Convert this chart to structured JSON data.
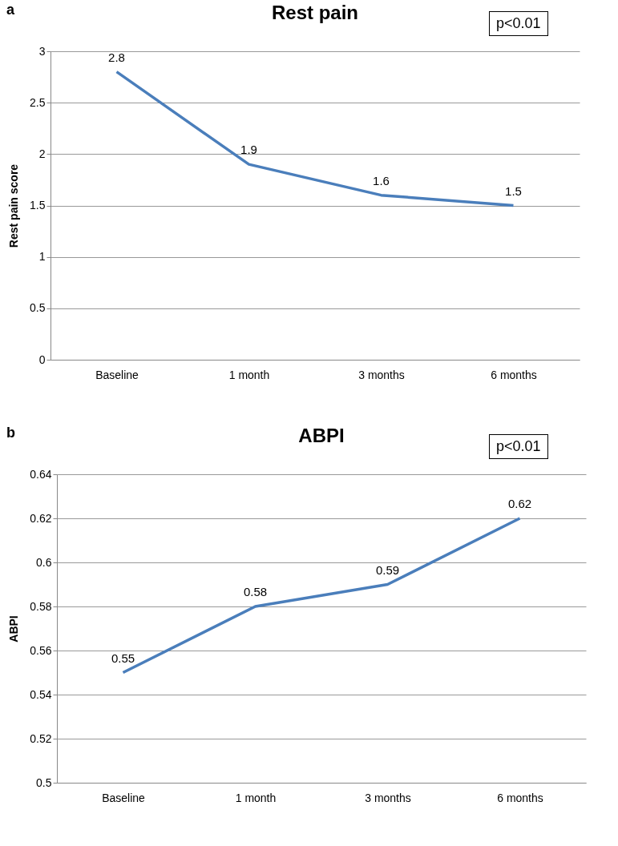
{
  "chart_data": [
    {
      "type": "line",
      "title": "Rest pain",
      "ylabel": "Rest pain score",
      "annotations": [
        "a",
        "p<0.01"
      ],
      "categories": [
        "Baseline",
        "1 month",
        "3 months",
        "6 months"
      ],
      "series": [
        {
          "color": "#4a7ebb",
          "values": [
            2.8,
            1.9,
            1.6,
            1.5
          ]
        }
      ],
      "ylim": [
        0,
        3
      ],
      "yticks": [
        0,
        0.5,
        1,
        1.5,
        2,
        2.5,
        3
      ],
      "grid": "y",
      "data_labels": true
    },
    {
      "type": "line",
      "title": "ABPI",
      "ylabel": "ABPI",
      "annotations": [
        "b",
        "p<0.01"
      ],
      "categories": [
        "Baseline",
        "1 month",
        "3 months",
        "6 months"
      ],
      "series": [
        {
          "color": "#4a7ebb",
          "values": [
            0.55,
            0.58,
            0.59,
            0.62
          ]
        }
      ],
      "ylim": [
        0.5,
        0.64
      ],
      "yticks": [
        0.5,
        0.52,
        0.54,
        0.56,
        0.58,
        0.6,
        0.62,
        0.64
      ],
      "grid": "y",
      "data_labels": true
    }
  ]
}
